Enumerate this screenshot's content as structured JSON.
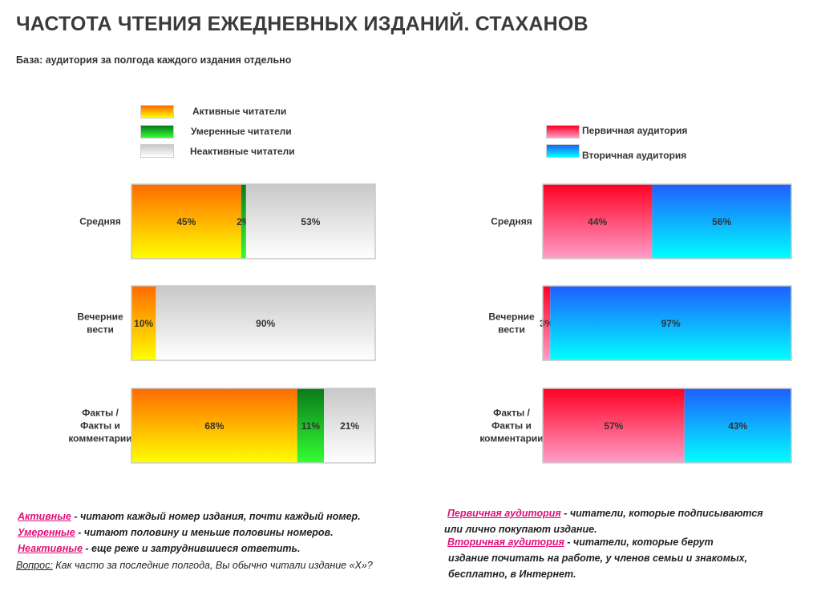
{
  "title": "ЧАСТОТА ЧТЕНИЯ ЕЖЕДНЕВНЫХ ИЗДАНИЙ. СТАХАНОВ",
  "subtitle": "База: аудитория за полгода каждого издания отдельно",
  "left_legend": [
    {
      "label": "Активные читатели",
      "icon": "gradient-orange-yellow-swatch"
    },
    {
      "label": "Умеренные читатели",
      "icon": "gradient-green-swatch"
    },
    {
      "label": "Неактивные читатели",
      "icon": "gradient-gray-swatch"
    }
  ],
  "right_legend": [
    {
      "label": "Первичная аудитория",
      "icon": "gradient-red-pink-swatch"
    },
    {
      "label": "Вторичная аудитория",
      "icon": "gradient-blue-cyan-swatch"
    }
  ],
  "chart_data": [
    {
      "type": "bar",
      "stacked": true,
      "orientation": "horizontal",
      "categories": [
        [
          "Средняя"
        ],
        [
          "Вечерние",
          "вести"
        ],
        [
          "Факты /",
          "Факты и",
          "комментарии"
        ]
      ],
      "series": [
        {
          "name": "Активные читатели",
          "values": [
            45,
            10,
            68
          ],
          "labels": [
            "45%",
            "10%",
            "68%"
          ],
          "gradient": [
            "#ff6a00",
            "#ffff00"
          ]
        },
        {
          "name": "Умеренные читатели",
          "values": [
            2,
            0,
            11
          ],
          "labels": [
            "2%",
            "",
            "11%"
          ],
          "gradient": [
            "#0a7a1a",
            "#33ff33"
          ]
        },
        {
          "name": "Неактивные читатели",
          "values": [
            53,
            90,
            21
          ],
          "labels": [
            "53%",
            "90%",
            "21%"
          ],
          "gradient": [
            "#c8c8c8",
            "#ffffff"
          ]
        }
      ],
      "xlim": [
        0,
        100
      ]
    },
    {
      "type": "bar",
      "stacked": true,
      "orientation": "horizontal",
      "categories": [
        [
          "Средняя"
        ],
        [
          "Вечерние",
          "вести"
        ],
        [
          "Факты /",
          "Факты и",
          "комментарии"
        ]
      ],
      "series": [
        {
          "name": "Первичная аудитория",
          "values": [
            44,
            3,
            57
          ],
          "labels": [
            "44%",
            "3%",
            "57%"
          ],
          "gradient": [
            "#ff0022",
            "#ff9ec9"
          ]
        },
        {
          "name": "Вторичная аудитория",
          "values": [
            56,
            97,
            43
          ],
          "labels": [
            "56%",
            "97%",
            "43%"
          ],
          "gradient": [
            "#1f5eff",
            "#00ffff"
          ]
        }
      ],
      "xlim": [
        0,
        100
      ]
    }
  ],
  "notes_left": [
    {
      "term": "Активные",
      "text": " - читают каждый номер издания, почти каждый номер."
    },
    {
      "term": "Умеренные",
      "text": " - читают половину и меньше  половины номеров."
    },
    {
      "term": "Неактивные",
      "text": " - еще реже и затруднившиеся ответить."
    }
  ],
  "question": {
    "term": "Вопрос:",
    "text": " Как часто за последние полгода, Вы обычно читали издание «Х»?"
  },
  "notes_right": [
    {
      "term": "Первичная аудитория",
      "text": " - читатели, которые подписываются",
      "cont": "или лично покупают издание."
    },
    {
      "term": "Вторичная аудитория",
      "text": " - читатели, которые берут",
      "cont": "издание почитать на работе, у членов семьи и знакомых,",
      "cont2": "бесплатно, в Интернет."
    }
  ]
}
